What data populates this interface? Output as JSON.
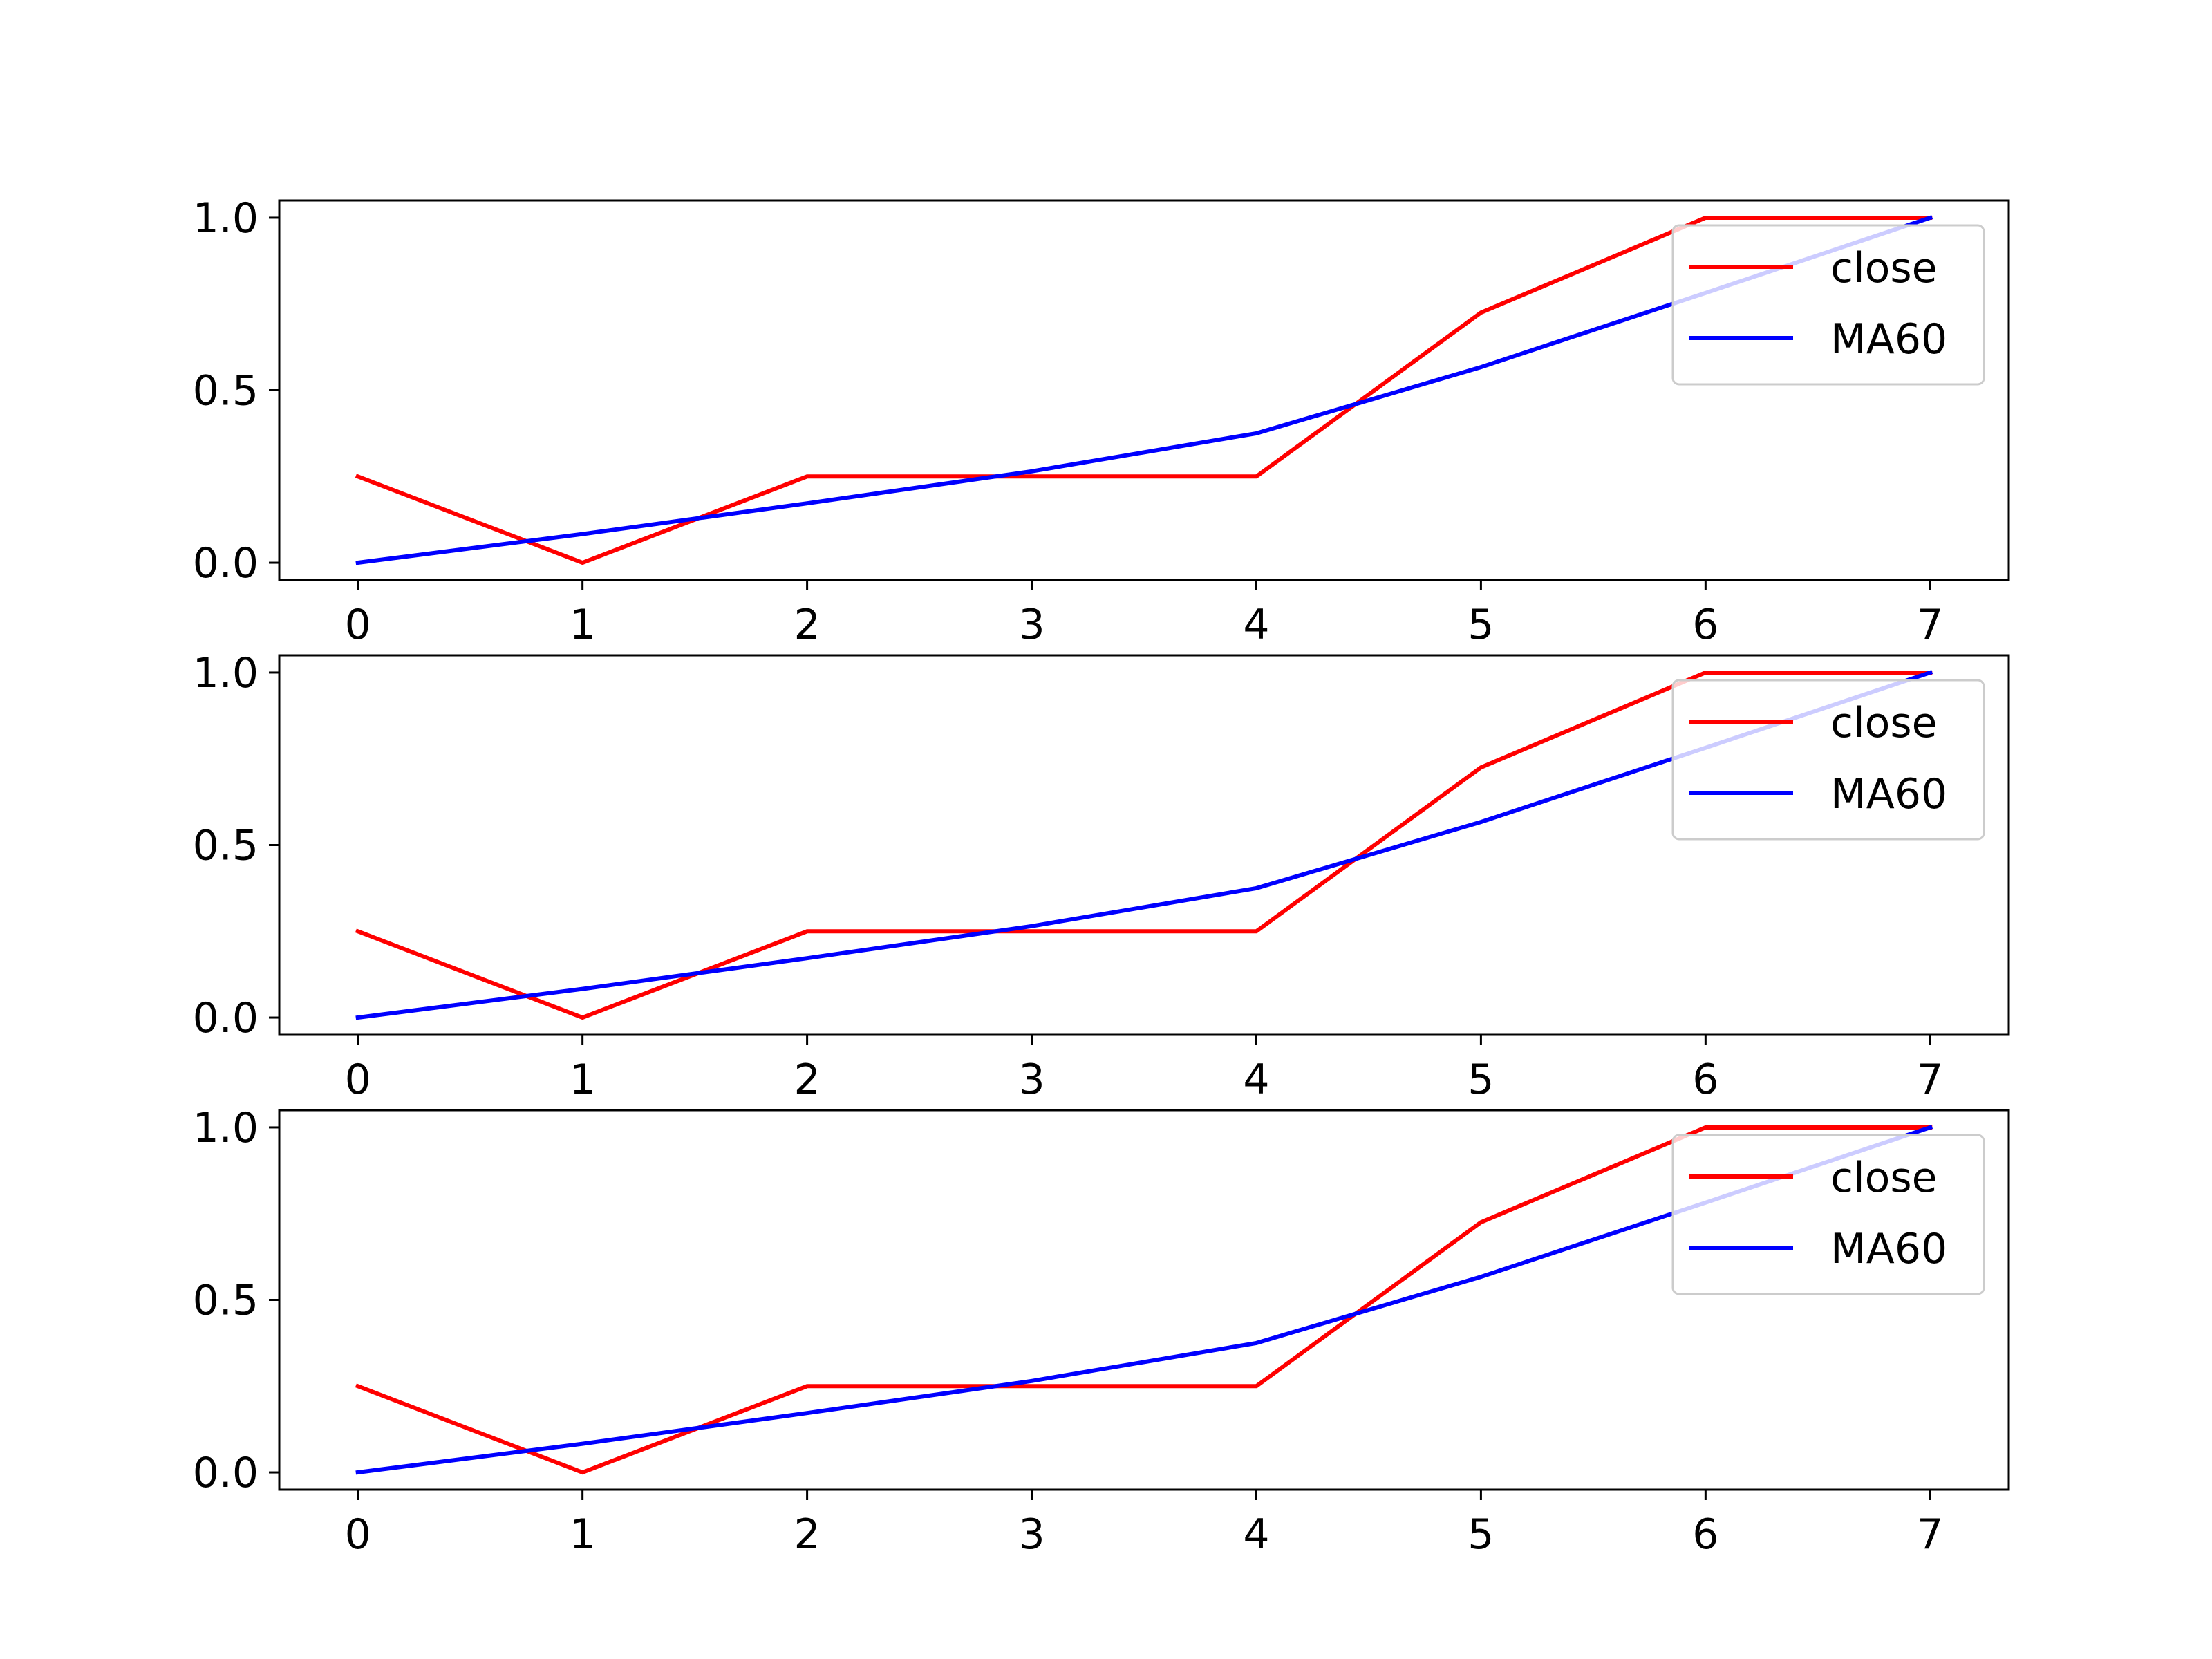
{
  "chart_data": [
    {
      "type": "line",
      "x": [
        0,
        1,
        2,
        3,
        4,
        5,
        6,
        7
      ],
      "x_ticks": [
        "0",
        "1",
        "2",
        "3",
        "4",
        "5",
        "6",
        "7"
      ],
      "y_ticks": [
        "0.0",
        "0.5",
        "1.0"
      ],
      "ylim": [
        -0.05,
        1.05
      ],
      "xlim": [
        -0.35,
        7.35
      ],
      "grid": false,
      "legend_position": "top-right",
      "series": [
        {
          "name": "close",
          "color": "#ff0000",
          "values": [
            0.25,
            0.0,
            0.25,
            0.25,
            0.25,
            0.725,
            1.0,
            1.0
          ]
        },
        {
          "name": "MA60",
          "color": "#0000ff",
          "values": [
            0.0,
            0.083,
            0.172,
            0.265,
            0.375,
            0.567,
            0.782,
            1.0
          ]
        }
      ]
    },
    {
      "type": "line",
      "x": [
        0,
        1,
        2,
        3,
        4,
        5,
        6,
        7
      ],
      "x_ticks": [
        "0",
        "1",
        "2",
        "3",
        "4",
        "5",
        "6",
        "7"
      ],
      "y_ticks": [
        "0.0",
        "0.5",
        "1.0"
      ],
      "ylim": [
        -0.05,
        1.05
      ],
      "xlim": [
        -0.35,
        7.35
      ],
      "grid": false,
      "legend_position": "top-right",
      "series": [
        {
          "name": "close",
          "color": "#ff0000",
          "values": [
            0.25,
            0.0,
            0.25,
            0.25,
            0.25,
            0.725,
            1.0,
            1.0
          ]
        },
        {
          "name": "MA60",
          "color": "#0000ff",
          "values": [
            0.0,
            0.083,
            0.172,
            0.265,
            0.375,
            0.567,
            0.782,
            1.0
          ]
        }
      ]
    },
    {
      "type": "line",
      "x": [
        0,
        1,
        2,
        3,
        4,
        5,
        6,
        7
      ],
      "x_ticks": [
        "0",
        "1",
        "2",
        "3",
        "4",
        "5",
        "6",
        "7"
      ],
      "y_ticks": [
        "0.0",
        "0.5",
        "1.0"
      ],
      "ylim": [
        -0.05,
        1.05
      ],
      "xlim": [
        -0.35,
        7.35
      ],
      "grid": false,
      "legend_position": "top-right",
      "series": [
        {
          "name": "close",
          "color": "#ff0000",
          "values": [
            0.25,
            0.0,
            0.25,
            0.25,
            0.25,
            0.725,
            1.0,
            1.0
          ]
        },
        {
          "name": "MA60",
          "color": "#0000ff",
          "values": [
            0.0,
            0.083,
            0.172,
            0.265,
            0.375,
            0.567,
            0.782,
            1.0
          ]
        }
      ]
    }
  ]
}
